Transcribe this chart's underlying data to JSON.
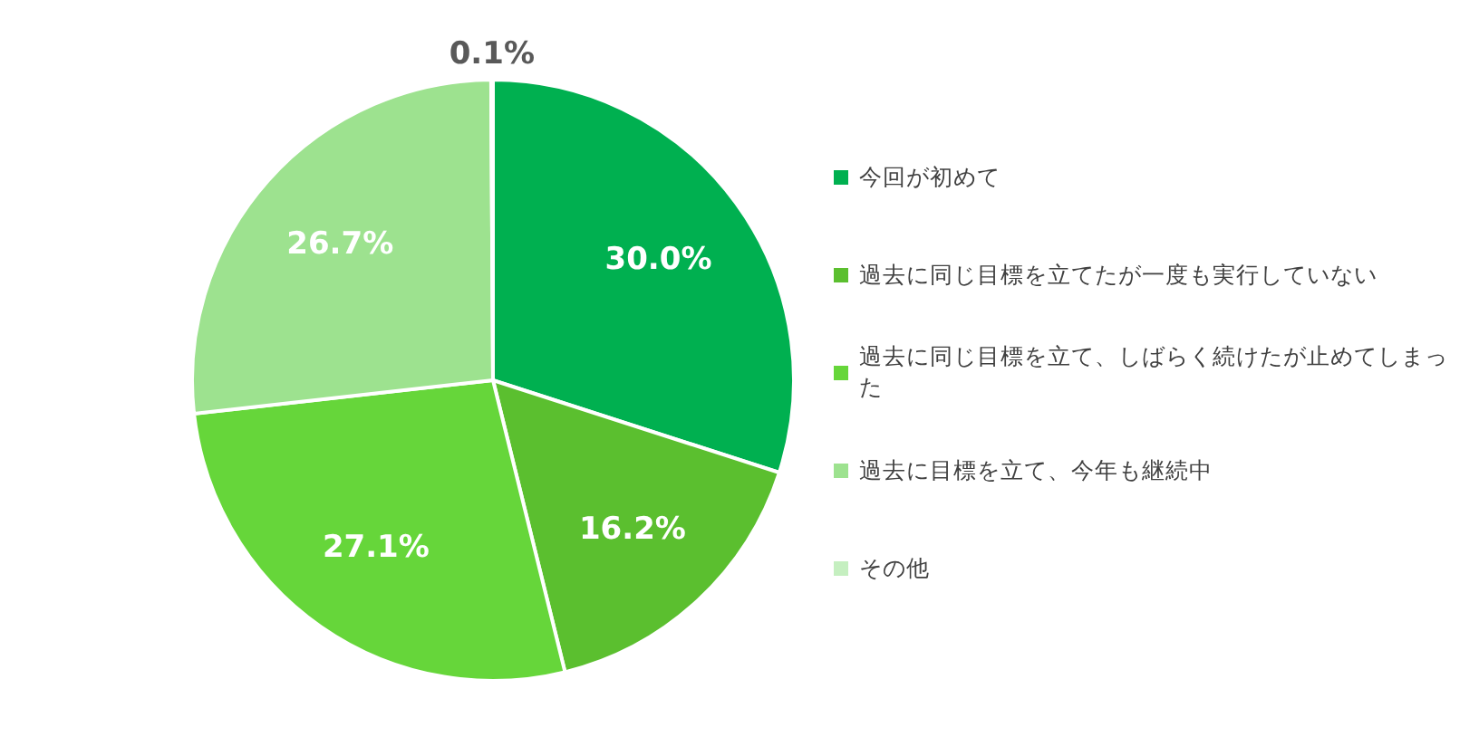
{
  "chart_data": {
    "type": "pie",
    "categories": [
      "今回が初めて",
      "過去に同じ目標を立てたが一度も実行していない",
      "過去に同じ目標を立て、しばらく続けたが止めてしまった",
      "過去に目標を立て、今年も継続中",
      "その他"
    ],
    "values": [
      30.0,
      16.2,
      27.1,
      26.7,
      0.1
    ],
    "value_labels": [
      "30.0%",
      "16.2%",
      "27.1%",
      "26.7%",
      "0.1%"
    ],
    "colors": [
      "#00b050",
      "#5bbf2f",
      "#66d63a",
      "#9de28f",
      "#c5efc0"
    ],
    "legend": "right"
  }
}
